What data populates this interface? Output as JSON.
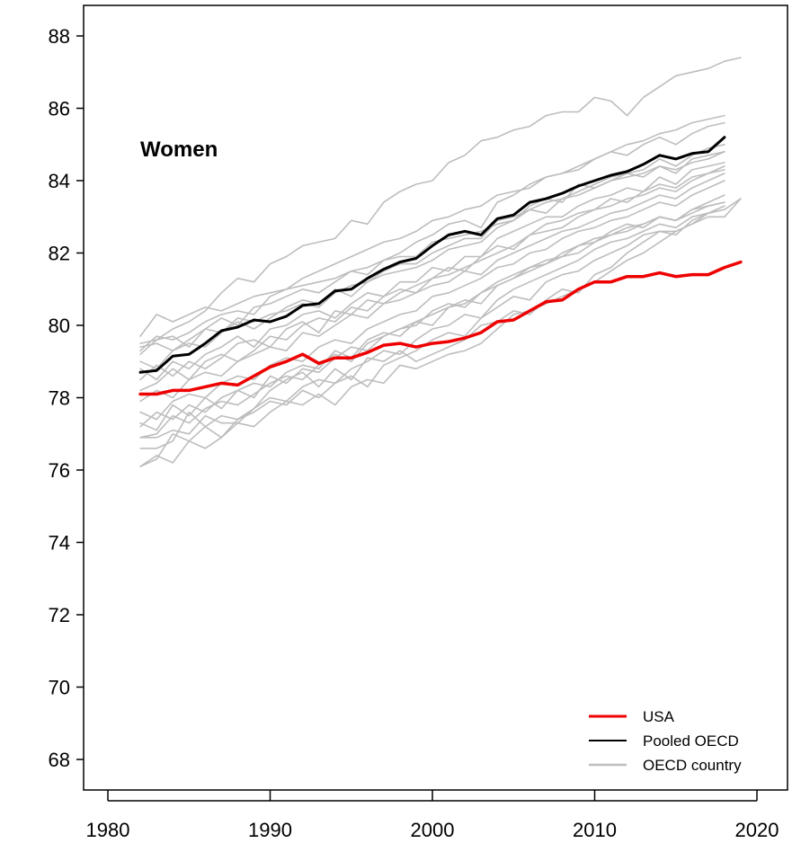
{
  "chart_data": {
    "type": "line",
    "title": "Women",
    "xlabel": "",
    "ylabel": "",
    "xlim": [
      1980,
      2020
    ],
    "ylim": [
      68,
      88
    ],
    "xticks": [
      1980,
      1990,
      2000,
      2010,
      2020
    ],
    "yticks": [
      68,
      70,
      72,
      74,
      76,
      78,
      80,
      82,
      84,
      86,
      88
    ],
    "grid": false,
    "legend_position": "bottom-right",
    "colors": {
      "usa": "#ee0000",
      "pooled": "#000000",
      "country": "#bdbdbd"
    },
    "legend": [
      {
        "label": "USA",
        "color": "#ee0000",
        "width": 3
      },
      {
        "label": "Pooled OECD",
        "color": "#000000",
        "width": 2
      },
      {
        "label": "OECD country",
        "color": "#bdbdbd",
        "width": 2.5
      }
    ],
    "series": [
      {
        "name": "USA",
        "role": "usa",
        "x": [
          1982,
          1983,
          1984,
          1985,
          1986,
          1987,
          1988,
          1989,
          1990,
          1991,
          1992,
          1993,
          1994,
          1995,
          1996,
          1997,
          1998,
          1999,
          2000,
          2001,
          2002,
          2003,
          2004,
          2005,
          2006,
          2007,
          2008,
          2009,
          2010,
          2011,
          2012,
          2013,
          2014,
          2015,
          2016,
          2017,
          2018,
          2019
        ],
        "values": [
          78.1,
          78.1,
          78.2,
          78.2,
          78.3,
          78.4,
          78.35,
          78.6,
          78.85,
          79.0,
          79.2,
          78.95,
          79.1,
          79.1,
          79.25,
          79.45,
          79.5,
          79.4,
          79.5,
          79.55,
          79.65,
          79.8,
          80.1,
          80.15,
          80.4,
          80.65,
          80.7,
          81.0,
          81.2,
          81.2,
          81.35,
          81.35,
          81.45,
          81.35,
          81.4,
          81.4,
          81.6,
          81.75
        ]
      },
      {
        "name": "Pooled OECD",
        "role": "pooled",
        "x": [
          1982,
          1983,
          1984,
          1985,
          1986,
          1987,
          1988,
          1989,
          1990,
          1991,
          1992,
          1993,
          1994,
          1995,
          1996,
          1997,
          1998,
          1999,
          2000,
          2001,
          2002,
          2003,
          2004,
          2005,
          2006,
          2007,
          2008,
          2009,
          2010,
          2011,
          2012,
          2013,
          2014,
          2015,
          2016,
          2017,
          2018
        ],
        "values": [
          78.7,
          78.75,
          79.15,
          79.2,
          79.5,
          79.85,
          79.95,
          80.15,
          80.1,
          80.25,
          80.55,
          80.6,
          80.95,
          81.0,
          81.3,
          81.55,
          81.75,
          81.85,
          82.2,
          82.5,
          82.6,
          82.5,
          82.95,
          83.05,
          83.4,
          83.5,
          83.65,
          83.85,
          84.0,
          84.15,
          84.25,
          84.45,
          84.7,
          84.6,
          84.75,
          84.8,
          85.2
        ]
      },
      {
        "role": "country",
        "x_start": 1982,
        "values": [
          79.5,
          79.6,
          79.9,
          80.1,
          80.4,
          80.9,
          81.3,
          81.2,
          81.7,
          81.9,
          82.2,
          82.3,
          82.4,
          82.9,
          82.8,
          83.4,
          83.7,
          83.9,
          84.0,
          84.5,
          84.7,
          85.1,
          85.2,
          85.4,
          85.5,
          85.8,
          85.9,
          85.9,
          86.3,
          86.2,
          85.8,
          86.3,
          86.6,
          86.9,
          87.0,
          87.1,
          87.3,
          87.4
        ]
      },
      {
        "role": "country",
        "x_start": 1982,
        "values": [
          79.7,
          80.3,
          80.1,
          80.3,
          80.5,
          80.4,
          80.6,
          80.8,
          80.9,
          81.0,
          81.3,
          81.5,
          81.7,
          81.9,
          82.1,
          82.3,
          82.4,
          82.6,
          82.9,
          83.0,
          83.2,
          83.3,
          83.6,
          83.7,
          83.8,
          84.1,
          84.2,
          84.3,
          84.6,
          84.8,
          85.0,
          85.1,
          85.3,
          85.4,
          85.6,
          85.7,
          85.8
        ]
      },
      {
        "role": "country",
        "x_start": 1982,
        "values": [
          79.3,
          79.7,
          79.6,
          79.8,
          80.1,
          80.3,
          80.4,
          80.3,
          80.8,
          81.0,
          81.1,
          81.2,
          81.3,
          81.5,
          81.6,
          81.8,
          82.0,
          82.3,
          82.5,
          82.8,
          82.9,
          82.7,
          83.4,
          83.6,
          83.9,
          84.1,
          84.2,
          84.4,
          84.6,
          84.8,
          84.7,
          85.0,
          85.2,
          85.0,
          85.3,
          85.5,
          85.6
        ]
      },
      {
        "role": "country",
        "x_start": 1982,
        "values": [
          79.4,
          79.5,
          79.3,
          79.6,
          79.9,
          79.8,
          80.2,
          80.1,
          80.3,
          80.4,
          80.6,
          80.5,
          80.9,
          81.1,
          81.2,
          81.5,
          81.7,
          81.7,
          82.0,
          82.2,
          82.4,
          82.4,
          82.9,
          83.0,
          83.2,
          83.4,
          83.5,
          83.7,
          83.9,
          84.1,
          84.2,
          84.3,
          84.6,
          84.4,
          84.7,
          84.9,
          85.0
        ]
      },
      {
        "role": "country",
        "x_start": 1982,
        "values": [
          79.2,
          79.6,
          79.7,
          79.4,
          79.9,
          80.2,
          80.0,
          80.5,
          80.6,
          80.8,
          81.0,
          80.9,
          81.2,
          81.5,
          81.4,
          81.8,
          81.9,
          81.9,
          82.3,
          82.4,
          82.5,
          82.6,
          82.8,
          82.9,
          83.3,
          83.5,
          83.4,
          83.9,
          83.8,
          84.0,
          84.1,
          84.2,
          84.4,
          84.2,
          84.6,
          84.7,
          84.8
        ]
      },
      {
        "role": "country",
        "x_start": 1982,
        "values": [
          79.0,
          78.8,
          79.3,
          79.5,
          79.4,
          79.8,
          80.1,
          79.9,
          80.2,
          80.5,
          80.7,
          80.6,
          81.0,
          80.8,
          81.2,
          81.4,
          81.5,
          81.6,
          81.8,
          82.1,
          82.2,
          82.3,
          82.7,
          82.9,
          83.2,
          83.1,
          83.5,
          83.6,
          83.8,
          84.0,
          84.2,
          84.1,
          84.4,
          84.3,
          84.5,
          84.6,
          84.8
        ]
      },
      {
        "role": "country",
        "x_start": 1982,
        "values": [
          78.8,
          78.5,
          79.0,
          78.8,
          79.2,
          79.4,
          79.7,
          79.4,
          79.9,
          80.0,
          80.3,
          80.4,
          80.2,
          80.6,
          80.9,
          80.8,
          81.2,
          81.2,
          81.6,
          81.5,
          81.9,
          81.9,
          82.4,
          82.6,
          82.8,
          83.0,
          83.0,
          83.3,
          83.5,
          83.6,
          83.8,
          83.7,
          84.1,
          83.9,
          84.3,
          84.4,
          84.5
        ]
      },
      {
        "role": "country",
        "x_start": 1982,
        "values": [
          78.5,
          78.9,
          78.6,
          79.0,
          78.8,
          79.1,
          79.5,
          79.6,
          79.4,
          79.9,
          80.1,
          79.8,
          80.4,
          80.3,
          80.7,
          80.6,
          80.9,
          81.1,
          81.3,
          81.4,
          81.6,
          81.8,
          82.0,
          82.2,
          82.5,
          82.6,
          82.7,
          83.0,
          83.2,
          83.3,
          83.5,
          83.6,
          83.8,
          83.7,
          84.0,
          84.2,
          84.3
        ]
      },
      {
        "role": "country",
        "x_start": 1982,
        "values": [
          78.2,
          78.4,
          78.8,
          78.5,
          79.0,
          79.2,
          79.0,
          79.3,
          79.7,
          79.6,
          80.0,
          80.2,
          80.1,
          80.5,
          80.4,
          80.8,
          81.0,
          80.9,
          81.3,
          81.6,
          81.5,
          81.9,
          82.2,
          82.1,
          82.5,
          82.8,
          82.9,
          83.1,
          83.2,
          83.5,
          83.4,
          83.7,
          83.9,
          83.8,
          84.1,
          84.2,
          84.4
        ]
      },
      {
        "role": "country",
        "x_start": 1982,
        "values": [
          77.9,
          78.2,
          78.0,
          78.5,
          78.7,
          78.6,
          79.0,
          79.2,
          79.4,
          79.3,
          79.8,
          79.7,
          80.0,
          80.3,
          80.2,
          80.6,
          80.7,
          80.9,
          81.1,
          81.2,
          81.5,
          81.4,
          81.8,
          82.0,
          82.2,
          82.4,
          82.6,
          82.7,
          82.9,
          83.1,
          83.2,
          83.4,
          83.6,
          83.5,
          83.8,
          84.0,
          84.2
        ]
      },
      {
        "role": "country",
        "x_start": 1982,
        "values": [
          77.6,
          77.4,
          77.9,
          78.1,
          78.0,
          78.4,
          78.6,
          78.5,
          78.9,
          79.1,
          79.0,
          79.4,
          79.6,
          79.5,
          79.9,
          80.1,
          80.3,
          80.4,
          80.8,
          80.9,
          81.1,
          81.3,
          81.6,
          81.7,
          82.0,
          82.1,
          82.4,
          82.6,
          82.7,
          82.9,
          83.0,
          83.2,
          83.4,
          83.3,
          83.6,
          83.8,
          84.0
        ]
      },
      {
        "role": "country",
        "x_start": 1982,
        "values": [
          77.2,
          77.6,
          77.4,
          77.8,
          77.6,
          78.0,
          78.2,
          78.4,
          78.3,
          78.7,
          78.9,
          78.8,
          79.3,
          79.1,
          79.6,
          79.8,
          79.7,
          80.1,
          80.3,
          80.5,
          80.6,
          80.9,
          81.2,
          81.4,
          81.6,
          81.8,
          81.9,
          82.2,
          82.4,
          82.5,
          82.7,
          82.8,
          83.0,
          82.9,
          83.2,
          83.4,
          83.6
        ]
      },
      {
        "role": "country",
        "x_start": 1982,
        "values": [
          76.9,
          77.0,
          77.5,
          77.3,
          77.7,
          77.9,
          77.8,
          78.1,
          78.4,
          78.6,
          78.5,
          78.9,
          79.2,
          79.0,
          79.5,
          79.7,
          79.9,
          80.0,
          80.4,
          80.6,
          80.5,
          80.9,
          81.1,
          81.3,
          81.6,
          81.7,
          82.0,
          82.2,
          82.3,
          82.6,
          82.8,
          82.7,
          83.0,
          82.9,
          83.2,
          83.3,
          83.4
        ]
      },
      {
        "role": "country",
        "x_start": 1982,
        "values": [
          76.6,
          76.6,
          76.8,
          77.6,
          77.2,
          77.5,
          77.4,
          77.7,
          78.0,
          77.9,
          78.3,
          78.5,
          78.4,
          78.8,
          79.0,
          79.3,
          79.2,
          79.6,
          79.9,
          80.0,
          80.3,
          80.2,
          80.7,
          81.0,
          81.2,
          81.4,
          81.6,
          81.8,
          82.1,
          82.3,
          82.4,
          82.6,
          82.8,
          82.7,
          83.0,
          83.1,
          83.3
        ]
      },
      {
        "role": "country",
        "x_start": 1982,
        "values": [
          76.1,
          76.3,
          77.0,
          76.8,
          77.2,
          76.9,
          77.4,
          77.6,
          77.9,
          77.8,
          78.2,
          78.0,
          78.4,
          78.6,
          78.3,
          78.9,
          79.1,
          79.3,
          79.6,
          79.8,
          79.7,
          80.2,
          80.5,
          80.8,
          80.7,
          81.2,
          81.4,
          81.5,
          81.8,
          82.0,
          82.2,
          82.5,
          82.6,
          82.6,
          82.8,
          83.0,
          83.0,
          83.5
        ]
      },
      {
        "role": "country",
        "x_start": 1982,
        "values": [
          76.1,
          76.4,
          76.2,
          76.8,
          76.6,
          76.9,
          77.3,
          77.2,
          77.6,
          77.9,
          77.8,
          78.1,
          77.8,
          78.3,
          78.5,
          78.4,
          78.9,
          78.8,
          79.0,
          79.2,
          79.3,
          79.5,
          79.9,
          80.3,
          80.4,
          80.6,
          80.8,
          81.0,
          81.2,
          81.5,
          81.8,
          82.0,
          82.3,
          82.6,
          82.8,
          83.1,
          83.2,
          83.5
        ]
      },
      {
        "role": "country",
        "x_start": 1982,
        "values": [
          76.9,
          76.9,
          77.1,
          77.0,
          77.5,
          77.3,
          77.3,
          77.7,
          78.2,
          78.5,
          78.7,
          78.3,
          78.8,
          78.5,
          79.1,
          79.0,
          79.3,
          79.0,
          79.2,
          79.4,
          79.6,
          80.0,
          80.1,
          80.4,
          80.3,
          80.7,
          81.0,
          80.9,
          81.4,
          81.6,
          82.0,
          82.3,
          82.6,
          82.5,
          82.9,
          83.1,
          83.3
        ]
      },
      {
        "role": "country",
        "x_start": 1982,
        "values": [
          77.3,
          77.1,
          77.8,
          77.5,
          78.0,
          77.7,
          78.2,
          78.0,
          78.6,
          78.4,
          78.8,
          78.7,
          79.1,
          79.4,
          79.3,
          79.7,
          79.9,
          80.1,
          80.0,
          80.5,
          80.7,
          80.6,
          81.1,
          81.3,
          81.5,
          81.7,
          81.9,
          82.0,
          82.3,
          82.5,
          82.6,
          82.8,
          83.0,
          82.9,
          83.1,
          83.3,
          83.4
        ]
      }
    ]
  }
}
